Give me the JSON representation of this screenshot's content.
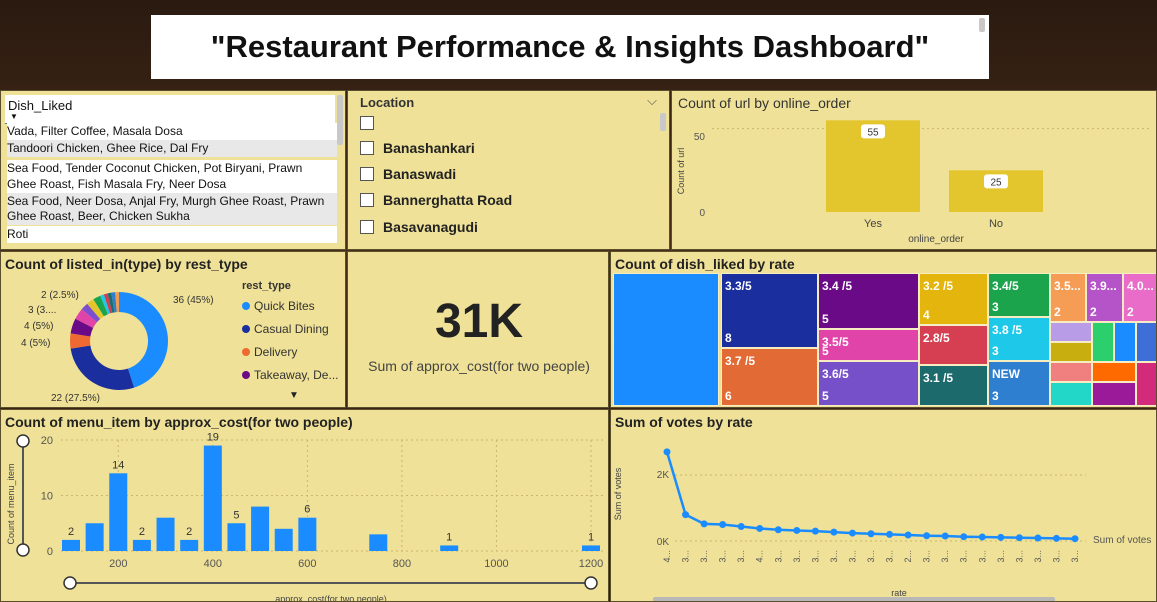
{
  "title": "\"Restaurant Performance & Insights Dashboard\"",
  "dish_slicer": {
    "header": "Dish_Liked",
    "items": [
      "Vada, Filter Coffee, Masala Dosa",
      "Tandoori Chicken, Ghee Rice, Dal Fry",
      "Sea Food, Tender Coconut Chicken, Pot Biryani, Prawn",
      "Ghee Roast, Fish Masala Fry, Neer Dosa",
      "Sea Food, Neer Dosa, Anjal Fry, Murgh Ghee Roast, Prawn",
      "Ghee Roast, Beer, Chicken Sukha",
      "Roti"
    ]
  },
  "location_slicer": {
    "header": "Location",
    "items": [
      "",
      "Banashankari",
      "Banaswadi",
      "Bannerghatta Road",
      "Basavanagudi"
    ]
  },
  "online_order_chart": {
    "title": "Count of url by online_order",
    "ylabel": "Count of url",
    "xlabel": "online_order",
    "yticks": [
      "50",
      "0"
    ],
    "bar_color": "#e3c52e",
    "chart_data": {
      "type": "bar",
      "categories": [
        "Yes",
        "No"
      ],
      "values": [
        55,
        25
      ],
      "ylim": [
        0,
        60
      ]
    }
  },
  "rest_type_chart": {
    "title": "Count of listed_in(type) by rest_type",
    "legend_title": "rest_type",
    "legend": [
      {
        "label": "Quick Bites",
        "color": "#1a8cff"
      },
      {
        "label": "Casual Dining",
        "color": "#1a2e9e"
      },
      {
        "label": "Delivery",
        "color": "#ee6a32"
      },
      {
        "label": "Takeaway, De...",
        "color": "#6b0a87"
      }
    ],
    "labels": [
      "36 (45%)",
      "22 (27.5%)",
      "4 (5%)",
      "4 (5%)",
      "3 (3....",
      "2 (2.5%)"
    ],
    "chart_data": {
      "type": "pie",
      "slices": [
        {
          "value": 36,
          "color": "#1a8cff"
        },
        {
          "value": 22,
          "color": "#1a2e9e"
        },
        {
          "value": 4,
          "color": "#ee6a32"
        },
        {
          "value": 4,
          "color": "#6b0a87"
        },
        {
          "value": 3,
          "color": "#e044a8"
        },
        {
          "value": 2,
          "color": "#7b4fd0"
        },
        {
          "value": 2,
          "color": "#e3c52e"
        },
        {
          "value": 2,
          "color": "#1ca44c"
        },
        {
          "value": 1,
          "color": "#1ec8e8"
        },
        {
          "value": 1,
          "color": "#d43c52"
        },
        {
          "value": 1,
          "color": "#1f6e6e"
        },
        {
          "value": 1,
          "color": "#2f7fd0"
        },
        {
          "value": 1,
          "color": "#f29c50"
        }
      ]
    }
  },
  "kpi": {
    "value": "31K",
    "label": "Sum of approx_cost(for two people)"
  },
  "treemap": {
    "title": "Count of dish_liked by rate",
    "cells": [
      {
        "label": "",
        "count": "",
        "color": "#1a8cff"
      },
      {
        "label": "3.3/5",
        "count": "8",
        "color": "#1a2e9e"
      },
      {
        "label": "3.7 /5",
        "count": "6",
        "color": "#e26a35"
      },
      {
        "label": "3.4 /5",
        "count": "5",
        "color": "#6b0a87"
      },
      {
        "label": "3.5/5",
        "count": "5",
        "color": "#e044a8"
      },
      {
        "label": "3.6/5",
        "count": "5",
        "color": "#7650c8"
      },
      {
        "label": "3.2 /5",
        "count": "4",
        "color": "#e3b50d"
      },
      {
        "label": "2.8/5",
        "count": "",
        "color": "#d63f52"
      },
      {
        "label": "3.1 /5",
        "count": "",
        "color": "#1c6a6c"
      },
      {
        "label": "3.4/5",
        "count": "3",
        "color": "#1ca44c"
      },
      {
        "label": "3.8 /5",
        "count": "3",
        "color": "#1ec8e8"
      },
      {
        "label": "NEW",
        "count": "3",
        "color": "#2f7fd0"
      },
      {
        "label": "3.5...",
        "count": "2",
        "color": "#f59c55"
      },
      {
        "label": "3.9...",
        "count": "2",
        "color": "#b454c8"
      },
      {
        "label": "4.0...",
        "count": "2",
        "color": "#e86cc8"
      }
    ]
  },
  "menu_chart": {
    "title": "Count of menu_item by approx_cost(for two people)",
    "ylabel": "Count of menu_item",
    "xlabel": "approx_cost(for two people)",
    "yticks": [
      "20",
      "10",
      "0"
    ],
    "xticks": [
      "200",
      "400",
      "600",
      "800",
      "1000",
      "1200"
    ],
    "chart_data": {
      "type": "bar",
      "x": [
        100,
        150,
        200,
        250,
        300,
        350,
        400,
        450,
        500,
        550,
        600,
        750,
        900,
        1200
      ],
      "values": [
        2,
        5,
        14,
        2,
        6,
        2,
        19,
        5,
        8,
        4,
        6,
        3,
        1,
        1
      ],
      "data_labels": {
        "100": "2",
        "200": "14",
        "250": "2",
        "350": "2",
        "400": "19",
        "450": "5",
        "600": "6",
        "900": "1",
        "1200": "1"
      },
      "ylim": [
        0,
        20
      ]
    }
  },
  "votes_chart": {
    "title": "Sum of votes by rate",
    "ylabel": "Sum of votes",
    "xlabel": "rate",
    "yticks": [
      "2K",
      "0K"
    ],
    "series_label": "Sum of votes",
    "chart_data": {
      "type": "line",
      "x": [
        "4...",
        "3...",
        "3...",
        "3...",
        "3...",
        "4...",
        "3...",
        "3...",
        "3...",
        "3...",
        "3...",
        "3...",
        "3...",
        "2...",
        "3...",
        "3...",
        "3...",
        "3...",
        "3...",
        "3...",
        "3...",
        "3...",
        "3..."
      ],
      "values": [
        2700,
        800,
        520,
        500,
        440,
        380,
        340,
        320,
        300,
        270,
        240,
        220,
        200,
        180,
        160,
        150,
        130,
        120,
        110,
        100,
        90,
        80,
        70
      ],
      "ylim": [
        0,
        3000
      ]
    }
  }
}
